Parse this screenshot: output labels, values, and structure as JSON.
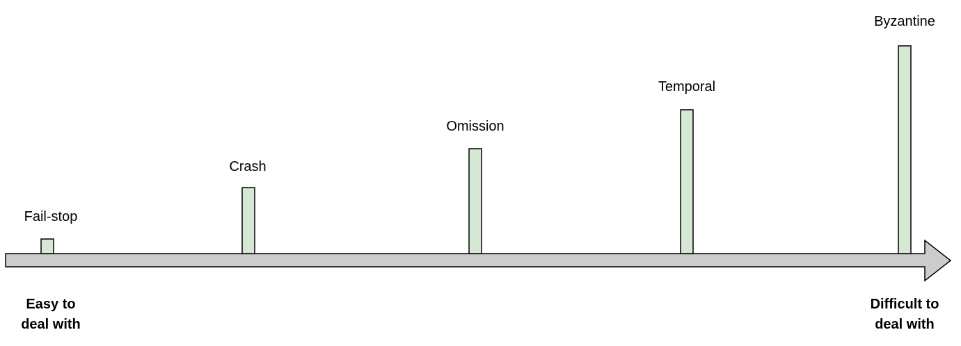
{
  "failure_types": [
    {
      "label": "Fail-stop",
      "level": 1
    },
    {
      "label": "Crash",
      "level": 2
    },
    {
      "label": "Omission",
      "level": 3
    },
    {
      "label": "Temporal",
      "level": 4
    },
    {
      "label": "Byzantine",
      "level": 5
    }
  ],
  "axis": {
    "start_label_line1": "Easy to",
    "start_label_line2": "deal with",
    "end_label_line1": "Difficult to",
    "end_label_line2": "deal with"
  },
  "colors": {
    "bar_fill": "#d5e8d4",
    "arrow_fill": "#cccccc",
    "stroke": "#000000"
  }
}
